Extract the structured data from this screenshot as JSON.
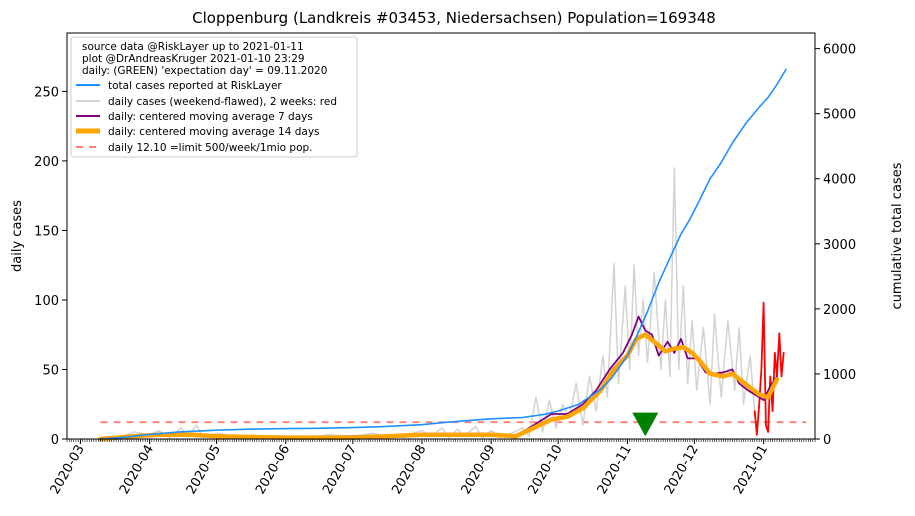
{
  "chart_data": {
    "type": "line",
    "title": "Cloppenburg (Landkreis #03453, Niedersachsen) Population=169348",
    "ylabel_left": "daily cases",
    "ylabel_right": "cumulative total cases",
    "xlim": [
      "2020-02-24",
      "2021-01-24"
    ],
    "ylim_left": [
      0,
      292
    ],
    "ylim_right": [
      0,
      6240
    ],
    "x_ticks": [
      "2020-03",
      "2020-04",
      "2020-05",
      "2020-06",
      "2020-07",
      "2020-08",
      "2020-09",
      "2020-10",
      "2020-11",
      "2020-12",
      "2021-01"
    ],
    "y_ticks_left": [
      0,
      50,
      100,
      150,
      200,
      250
    ],
    "y_ticks_right": [
      0,
      1000,
      2000,
      3000,
      4000,
      5000,
      6000
    ],
    "legend_placement": "top-left",
    "legend_header": [
      "source data @RiskLayer up to 2021-01-11",
      "plot @DrAndreasKruger 2021-01-10 23:29",
      "daily: (GREEN) 'expectation day' = 09.11.2020"
    ],
    "legend": [
      {
        "label": "total cases reported at RiskLayer",
        "color": "#1e90ff",
        "style": "line"
      },
      {
        "label": "daily cases (weekend-flawed), 2 weeks: red",
        "color": "#d3d3d3",
        "style": "line"
      },
      {
        "label": "daily: centered moving average 7 days",
        "color": "#800080",
        "style": "line"
      },
      {
        "label": "daily: centered moving average 14 days",
        "color": "#ffa500",
        "style": "thick"
      },
      {
        "label": "daily 12.10 =limit 500/week/1mio pop.",
        "color": "#fa8072",
        "style": "dashed"
      }
    ],
    "limit_line": {
      "value": 12.1,
      "x_from": "2020-03-10",
      "x_to": "2021-01-20"
    },
    "expectation_day": "2020-11-09",
    "colors": {
      "total": "#1e90ff",
      "daily": "#d3d3d3",
      "daily_recent": "#ff0000",
      "ma7": "#800080",
      "ma14": "#ffa500",
      "limit": "#fa8072",
      "expectation": "#008000",
      "ylabel_left": "#800080",
      "ylabel_right": "#1e90ff"
    },
    "series": [
      {
        "name": "total cases reported at RiskLayer",
        "axis": "right",
        "points": [
          [
            "2020-03-10",
            0
          ],
          [
            "2020-03-20",
            25
          ],
          [
            "2020-04-01",
            70
          ],
          [
            "2020-04-15",
            110
          ],
          [
            "2020-05-01",
            135
          ],
          [
            "2020-05-15",
            150
          ],
          [
            "2020-06-01",
            160
          ],
          [
            "2020-06-15",
            165
          ],
          [
            "2020-07-01",
            175
          ],
          [
            "2020-07-15",
            190
          ],
          [
            "2020-08-01",
            220
          ],
          [
            "2020-08-10",
            250
          ],
          [
            "2020-08-20",
            280
          ],
          [
            "2020-09-01",
            310
          ],
          [
            "2020-09-15",
            330
          ],
          [
            "2020-09-25",
            380
          ],
          [
            "2020-10-01",
            430
          ],
          [
            "2020-10-10",
            530
          ],
          [
            "2020-10-20",
            760
          ],
          [
            "2020-10-25",
            940
          ],
          [
            "2020-11-01",
            1280
          ],
          [
            "2020-11-05",
            1570
          ],
          [
            "2020-11-10",
            1960
          ],
          [
            "2020-11-15",
            2400
          ],
          [
            "2020-11-20",
            2780
          ],
          [
            "2020-11-25",
            3150
          ],
          [
            "2020-11-29",
            3380
          ],
          [
            "2020-12-03",
            3650
          ],
          [
            "2020-12-08",
            4000
          ],
          [
            "2020-12-13",
            4250
          ],
          [
            "2020-12-18",
            4550
          ],
          [
            "2020-12-24",
            4850
          ],
          [
            "2020-12-30",
            5100
          ],
          [
            "2021-01-03",
            5250
          ],
          [
            "2021-01-07",
            5450
          ],
          [
            "2021-01-11",
            5680
          ]
        ]
      },
      {
        "name": "daily cases (weekend-flawed), 2 weeks: red",
        "axis": "left",
        "points": [
          [
            "2020-03-10",
            0
          ],
          [
            "2020-03-20",
            2
          ],
          [
            "2020-03-25",
            5
          ],
          [
            "2020-04-01",
            3
          ],
          [
            "2020-04-05",
            6
          ],
          [
            "2020-04-10",
            1
          ],
          [
            "2020-04-15",
            8
          ],
          [
            "2020-04-18",
            2
          ],
          [
            "2020-04-22",
            10
          ],
          [
            "2020-04-25",
            1
          ],
          [
            "2020-05-01",
            4
          ],
          [
            "2020-05-10",
            2
          ],
          [
            "2020-05-20",
            1
          ],
          [
            "2020-06-01",
            2
          ],
          [
            "2020-06-10",
            1
          ],
          [
            "2020-06-20",
            3
          ],
          [
            "2020-07-01",
            2
          ],
          [
            "2020-07-10",
            4
          ],
          [
            "2020-07-20",
            1
          ],
          [
            "2020-08-01",
            6
          ],
          [
            "2020-08-05",
            2
          ],
          [
            "2020-08-10",
            8
          ],
          [
            "2020-08-13",
            1
          ],
          [
            "2020-08-17",
            7
          ],
          [
            "2020-08-20",
            2
          ],
          [
            "2020-08-25",
            9
          ],
          [
            "2020-08-28",
            1
          ],
          [
            "2020-09-01",
            6
          ],
          [
            "2020-09-05",
            2
          ],
          [
            "2020-09-10",
            4
          ],
          [
            "2020-09-15",
            8
          ],
          [
            "2020-09-18",
            2
          ],
          [
            "2020-09-21",
            30
          ],
          [
            "2020-09-24",
            5
          ],
          [
            "2020-09-27",
            28
          ],
          [
            "2020-09-30",
            8
          ],
          [
            "2020-10-03",
            25
          ],
          [
            "2020-10-06",
            15
          ],
          [
            "2020-10-09",
            40
          ],
          [
            "2020-10-12",
            10
          ],
          [
            "2020-10-15",
            45
          ],
          [
            "2020-10-18",
            20
          ],
          [
            "2020-10-21",
            60
          ],
          [
            "2020-10-23",
            30
          ],
          [
            "2020-10-26",
            126
          ],
          [
            "2020-10-28",
            40
          ],
          [
            "2020-10-31",
            110
          ],
          [
            "2020-11-02",
            50
          ],
          [
            "2020-11-04",
            125
          ],
          [
            "2020-11-06",
            60
          ],
          [
            "2020-11-08",
            100
          ],
          [
            "2020-11-10",
            55
          ],
          [
            "2020-11-13",
            120
          ],
          [
            "2020-11-16",
            50
          ],
          [
            "2020-11-18",
            100
          ],
          [
            "2020-11-20",
            45
          ],
          [
            "2020-11-22",
            195
          ],
          [
            "2020-11-24",
            50
          ],
          [
            "2020-11-26",
            110
          ],
          [
            "2020-11-28",
            40
          ],
          [
            "2020-11-30",
            85
          ],
          [
            "2020-12-02",
            35
          ],
          [
            "2020-12-05",
            80
          ],
          [
            "2020-12-08",
            25
          ],
          [
            "2020-12-10",
            90
          ],
          [
            "2020-12-13",
            30
          ],
          [
            "2020-12-16",
            85
          ],
          [
            "2020-12-19",
            35
          ],
          [
            "2020-12-21",
            80
          ],
          [
            "2020-12-23",
            25
          ],
          [
            "2020-12-26",
            60
          ],
          [
            "2020-12-28",
            20
          ]
        ]
      },
      {
        "name": "daily cases last 2 weeks",
        "axis": "left",
        "points": [
          [
            "2020-12-28",
            20
          ],
          [
            "2020-12-29",
            3
          ],
          [
            "2020-12-30",
            25
          ],
          [
            "2020-12-31",
            50
          ],
          [
            "2021-01-01",
            98
          ],
          [
            "2021-01-02",
            10
          ],
          [
            "2021-01-03",
            5
          ],
          [
            "2021-01-04",
            45
          ],
          [
            "2021-01-05",
            20
          ],
          [
            "2021-01-06",
            62
          ],
          [
            "2021-01-07",
            45
          ],
          [
            "2021-01-08",
            76
          ],
          [
            "2021-01-09",
            45
          ],
          [
            "2021-01-10",
            62
          ]
        ]
      },
      {
        "name": "daily: centered moving average 7 days",
        "axis": "left",
        "points": [
          [
            "2020-03-10",
            0
          ],
          [
            "2020-03-25",
            2
          ],
          [
            "2020-04-05",
            3
          ],
          [
            "2020-04-20",
            4
          ],
          [
            "2020-05-01",
            2
          ],
          [
            "2020-06-01",
            1
          ],
          [
            "2020-07-01",
            2
          ],
          [
            "2020-08-01",
            3
          ],
          [
            "2020-08-20",
            4
          ],
          [
            "2020-09-01",
            3
          ],
          [
            "2020-09-12",
            2
          ],
          [
            "2020-09-20",
            10
          ],
          [
            "2020-09-28",
            18
          ],
          [
            "2020-10-05",
            18
          ],
          [
            "2020-10-12",
            25
          ],
          [
            "2020-10-18",
            35
          ],
          [
            "2020-10-24",
            50
          ],
          [
            "2020-10-30",
            62
          ],
          [
            "2020-11-03",
            75
          ],
          [
            "2020-11-06",
            88
          ],
          [
            "2020-11-09",
            78
          ],
          [
            "2020-11-12",
            75
          ],
          [
            "2020-11-15",
            60
          ],
          [
            "2020-11-19",
            70
          ],
          [
            "2020-11-22",
            62
          ],
          [
            "2020-11-25",
            72
          ],
          [
            "2020-11-28",
            58
          ],
          [
            "2020-12-02",
            58
          ],
          [
            "2020-12-06",
            48
          ],
          [
            "2020-12-10",
            47
          ],
          [
            "2020-12-14",
            48
          ],
          [
            "2020-12-18",
            50
          ],
          [
            "2020-12-21",
            40
          ],
          [
            "2020-12-25",
            35
          ],
          [
            "2020-12-28",
            32
          ],
          [
            "2021-01-01",
            28
          ],
          [
            "2021-01-04",
            38
          ],
          [
            "2021-01-07",
            45
          ]
        ]
      },
      {
        "name": "daily: centered moving average 14 days",
        "axis": "left",
        "points": [
          [
            "2020-03-10",
            0
          ],
          [
            "2020-03-25",
            2
          ],
          [
            "2020-04-05",
            3
          ],
          [
            "2020-04-20",
            3
          ],
          [
            "2020-05-01",
            2
          ],
          [
            "2020-06-01",
            1
          ],
          [
            "2020-07-01",
            1
          ],
          [
            "2020-08-01",
            3
          ],
          [
            "2020-08-20",
            3
          ],
          [
            "2020-09-01",
            3
          ],
          [
            "2020-09-12",
            2
          ],
          [
            "2020-09-20",
            8
          ],
          [
            "2020-09-28",
            14
          ],
          [
            "2020-10-05",
            16
          ],
          [
            "2020-10-12",
            22
          ],
          [
            "2020-10-20",
            35
          ],
          [
            "2020-10-26",
            50
          ],
          [
            "2020-11-01",
            60
          ],
          [
            "2020-11-05",
            72
          ],
          [
            "2020-11-09",
            75
          ],
          [
            "2020-11-13",
            70
          ],
          [
            "2020-11-18",
            63
          ],
          [
            "2020-11-22",
            65
          ],
          [
            "2020-11-26",
            66
          ],
          [
            "2020-11-30",
            62
          ],
          [
            "2020-12-04",
            55
          ],
          [
            "2020-12-08",
            47
          ],
          [
            "2020-12-14",
            45
          ],
          [
            "2020-12-18",
            47
          ],
          [
            "2020-12-22",
            42
          ],
          [
            "2020-12-26",
            37
          ],
          [
            "2020-12-30",
            32
          ],
          [
            "2021-01-03",
            30
          ],
          [
            "2021-01-07",
            43
          ]
        ]
      }
    ]
  }
}
